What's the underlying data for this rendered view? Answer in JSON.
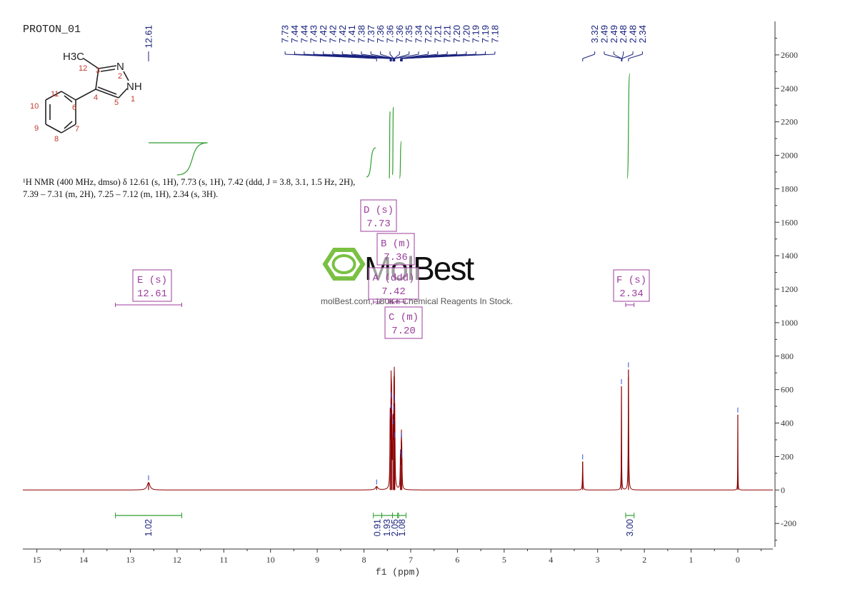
{
  "sample_id": "PROTON_01",
  "structure": {
    "groups": [
      "H3C",
      "N",
      "NH"
    ],
    "atom_numbers": [
      "1",
      "2",
      "3",
      "4",
      "5",
      "6",
      "7",
      "8",
      "9",
      "10",
      "11",
      "12"
    ]
  },
  "description": {
    "line1": "¹H NMR (400 MHz, dmso) δ 12.61 (s, 1H), 7.73 (s, 1H), 7.42 (ddd, J = 3.8, 3.1, 1.5 Hz, 2H),",
    "line2": "7.39 – 7.31 (m, 2H), 7.25 – 7.12 (m, 1H), 2.34 (s, 3H)."
  },
  "watermark": {
    "brand": "MolBest",
    "tagline": "molBest.com, 180K+ Chemical Reagents In Stock."
  },
  "colors": {
    "spectrum": "#8b0000",
    "integral": "#2e9e2e",
    "peak_label": "#1a237e",
    "multiplet_box": "#9c3d9c",
    "axis": "#333333",
    "logo_green": "#7ac143"
  },
  "chart_data": {
    "type": "line",
    "title": "",
    "xlabel": "f1 (ppm)",
    "ylabel": "",
    "xlim": [
      15.3,
      -0.75
    ],
    "ylim": [
      -340,
      2800
    ],
    "x_reversed": true,
    "x_ticks": [
      15,
      14,
      13,
      12,
      11,
      10,
      9,
      8,
      7,
      6,
      5,
      4,
      3,
      2,
      1,
      0
    ],
    "y_ticks": [
      -200,
      0,
      200,
      400,
      600,
      800,
      1000,
      1200,
      1400,
      1600,
      1800,
      2000,
      2200,
      2400,
      2600
    ],
    "peaks": [
      {
        "ppm": 12.61,
        "height": 45,
        "width": 0.035
      },
      {
        "ppm": 7.73,
        "height": 20,
        "width": 0.03
      },
      {
        "ppm": 7.44,
        "height": 420,
        "width": 0.006
      },
      {
        "ppm": 7.42,
        "height": 540,
        "width": 0.006
      },
      {
        "ppm": 7.41,
        "height": 470,
        "width": 0.006
      },
      {
        "ppm": 7.38,
        "height": 380,
        "width": 0.006
      },
      {
        "ppm": 7.36,
        "height": 460,
        "width": 0.006
      },
      {
        "ppm": 7.35,
        "height": 520,
        "width": 0.006
      },
      {
        "ppm": 7.34,
        "height": 300,
        "width": 0.006
      },
      {
        "ppm": 7.22,
        "height": 200,
        "width": 0.006
      },
      {
        "ppm": 7.2,
        "height": 300,
        "width": 0.006
      },
      {
        "ppm": 7.19,
        "height": 180,
        "width": 0.006
      },
      {
        "ppm": 3.32,
        "height": 170,
        "width": 0.006
      },
      {
        "ppm": 2.49,
        "height": 620,
        "width": 0.004
      },
      {
        "ppm": 2.34,
        "height": 720,
        "width": 0.006
      },
      {
        "ppm": 0.0,
        "height": 450,
        "width": 0.003
      }
    ],
    "peak_label_groups": [
      {
        "labels": [
          "12.61"
        ],
        "ppm": [
          12.61
        ]
      },
      {
        "labels": [
          "7.73",
          "7.44",
          "7.44",
          "7.43",
          "7.42",
          "7.42",
          "7.42",
          "7.41",
          "7.38",
          "7.37",
          "7.36",
          "7.36",
          "7.36",
          "7.35",
          "7.34",
          "7.22",
          "7.21",
          "7.21",
          "7.20",
          "7.20",
          "7.19",
          "7.19",
          "7.18"
        ],
        "ppm": [
          7.73,
          7.44,
          7.44,
          7.43,
          7.42,
          7.42,
          7.42,
          7.41,
          7.38,
          7.37,
          7.36,
          7.36,
          7.36,
          7.35,
          7.34,
          7.22,
          7.21,
          7.21,
          7.2,
          7.2,
          7.19,
          7.19,
          7.18
        ]
      },
      {
        "labels": [
          "3.32",
          "2.49",
          "2.49",
          "2.48",
          "2.48",
          "2.34"
        ],
        "ppm": [
          3.32,
          2.49,
          2.49,
          2.48,
          2.48,
          2.34
        ]
      }
    ],
    "multiplets": [
      {
        "letter": "E",
        "mult": "s",
        "shift": "12.61",
        "range": [
          13.32,
          11.9
        ]
      },
      {
        "letter": "D",
        "mult": "s",
        "shift": "7.73",
        "range": [
          7.8,
          7.66
        ]
      },
      {
        "letter": "B",
        "mult": "m",
        "shift": "7.36",
        "range": [
          7.4,
          7.3
        ]
      },
      {
        "letter": "A",
        "mult": "ddd",
        "shift": "7.42",
        "range": [
          7.46,
          7.39
        ]
      },
      {
        "letter": "C",
        "mult": "m",
        "shift": "7.20",
        "range": [
          7.25,
          7.12
        ]
      },
      {
        "letter": "F",
        "mult": "s",
        "shift": "2.34",
        "range": [
          2.4,
          2.22
        ]
      }
    ],
    "integrals": [
      {
        "value": "1.02",
        "range": [
          13.32,
          11.9
        ]
      },
      {
        "value": "0.91",
        "range": [
          7.8,
          7.62
        ]
      },
      {
        "value": "1.93",
        "range": [
          7.62,
          7.39
        ]
      },
      {
        "value": "2.05",
        "range": [
          7.39,
          7.28
        ]
      },
      {
        "value": "1.08",
        "range": [
          7.26,
          7.1
        ]
      },
      {
        "value": "3.00",
        "range": [
          2.4,
          2.22
        ]
      }
    ]
  }
}
